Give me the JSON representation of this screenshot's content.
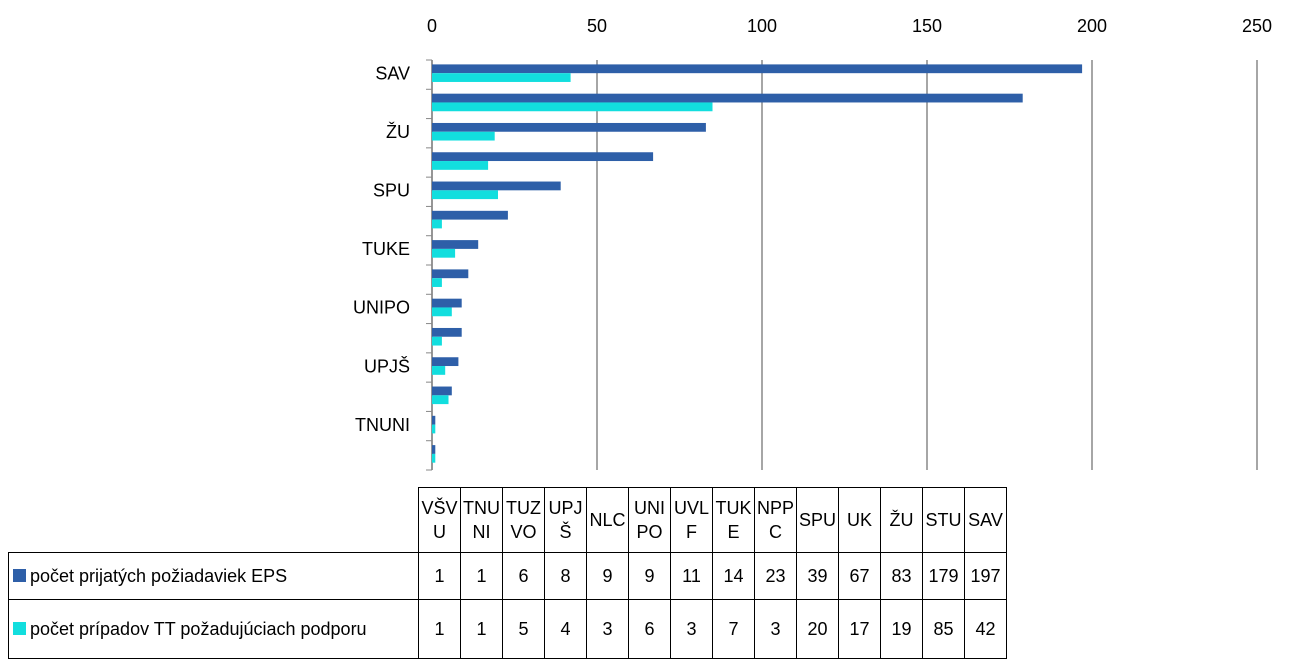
{
  "chart_data": {
    "type": "bar",
    "orientation": "horizontal",
    "categories": [
      "VŠVU",
      "TNUNI",
      "TUZVO",
      "UPJŠ",
      "NLC",
      "UNIPO",
      "UVLF",
      "TUKE",
      "NPPC",
      "SPU",
      "UK",
      "ŽU",
      "STU",
      "SAV"
    ],
    "series": [
      {
        "name": "počet prijatých požiadaviek EPS",
        "color": "#2e5fa8",
        "values": [
          1,
          1,
          6,
          8,
          9,
          9,
          11,
          14,
          23,
          39,
          67,
          83,
          179,
          197
        ]
      },
      {
        "name": "počet prípadov TT požadujúciach podporu",
        "color": "#12dede",
        "values": [
          1,
          1,
          5,
          4,
          3,
          6,
          3,
          7,
          3,
          20,
          17,
          19,
          85,
          42
        ]
      }
    ],
    "xlim": [
      0,
      250
    ],
    "xticks": [
      0,
      50,
      100,
      150,
      200,
      250
    ],
    "grid": true
  }
}
